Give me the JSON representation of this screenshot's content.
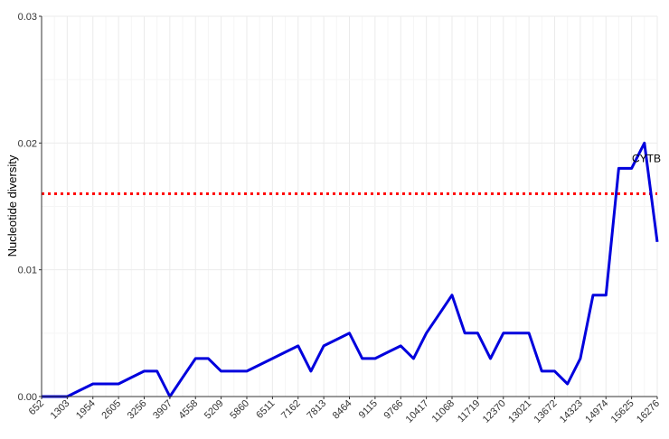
{
  "chart_data": {
    "type": "line",
    "title": "",
    "xlabel": "",
    "ylabel": "Nucleotide diversity",
    "x": [
      652,
      977,
      1303,
      1628,
      1954,
      2279,
      2605,
      2930,
      3256,
      3581,
      3907,
      4232,
      4558,
      4883,
      5209,
      5534,
      5860,
      6185,
      6511,
      6836,
      7162,
      7487,
      7813,
      8138,
      8464,
      8789,
      9115,
      9440,
      9766,
      10091,
      10417,
      10742,
      11068,
      11393,
      11719,
      12044,
      12370,
      12695,
      13021,
      13346,
      13672,
      13997,
      14323,
      14648,
      14974,
      15299,
      15625,
      15950,
      16276
    ],
    "xticks": [
      652,
      1303,
      1954,
      2605,
      3256,
      3907,
      4558,
      5209,
      5860,
      6511,
      7162,
      7813,
      8464,
      9115,
      9766,
      10417,
      11068,
      11719,
      12370,
      13021,
      13672,
      14323,
      14974,
      15625,
      16276
    ],
    "xlim": [
      652,
      16276
    ],
    "ylim": [
      0,
      0.03
    ],
    "yticks": [
      0,
      0.01,
      0.02,
      0.03
    ],
    "ytick_labels": [
      "0.00",
      "0.01",
      "0.02",
      "0.03"
    ],
    "series": [
      {
        "values": [
          0,
          0,
          0,
          0.0005,
          0.001,
          0.001,
          0.001,
          0.0015,
          0.002,
          0.002,
          0,
          0.0015,
          0.003,
          0.003,
          0.002,
          0.002,
          0.002,
          0.0025,
          0.003,
          0.0035,
          0.004,
          0.002,
          0.004,
          0.0045,
          0.005,
          0.003,
          0.003,
          0.0035,
          0.004,
          0.003,
          0.005,
          0.0065,
          0.008,
          0.005,
          0.005,
          0.003,
          0.005,
          0.005,
          0.005,
          0.002,
          0.002,
          0.001,
          0.003,
          0.008,
          0.008,
          0.018,
          0.018,
          0.02,
          0.0122
        ],
        "color": "#0000dd"
      }
    ],
    "threshold": {
      "value": 0.016,
      "color": "#ff0000",
      "style": "dotted"
    },
    "annotations": [
      {
        "text": "CYTB",
        "x": 16000,
        "y": 0.0185
      }
    ],
    "grid": true,
    "legend": "none"
  }
}
